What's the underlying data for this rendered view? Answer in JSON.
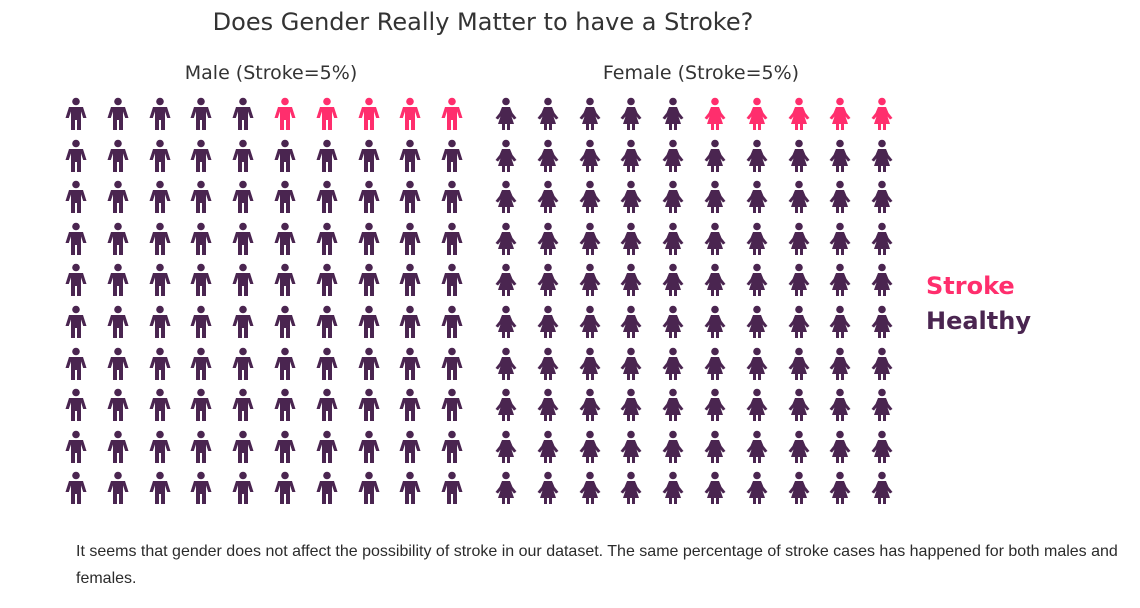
{
  "colors": {
    "stroke": "#ff2e6d",
    "healthy": "#4a2550"
  },
  "chart_data": {
    "type": "waffle",
    "title": "Does Gender Really Matter to have a Stroke?",
    "grid": {
      "rows": 10,
      "cols": 10
    },
    "legend": [
      {
        "label": "Stroke",
        "color": "#ff2e6d"
      },
      {
        "label": "Healthy",
        "color": "#4a2550"
      }
    ],
    "panels": [
      {
        "key": "male",
        "title": "Male (Stroke=5%)",
        "icon": "male-person-icon",
        "stroke_percent": 5,
        "healthy_percent": 95
      },
      {
        "key": "female",
        "title": "Female (Stroke=5%)",
        "icon": "female-person-icon",
        "stroke_percent": 5,
        "healthy_percent": 95
      }
    ]
  },
  "caption": "It seems that gender does not affect the possibility of stroke in our dataset. The same percentage of stroke cases has happened for both males and females."
}
